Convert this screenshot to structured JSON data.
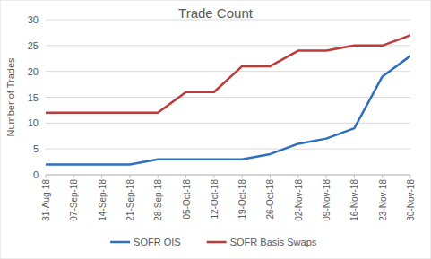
{
  "chart_data": {
    "type": "line",
    "title": "Trade Count",
    "y_label": "Number of Trades",
    "categories": [
      "31-Aug-18",
      "07-Sep-18",
      "14-Sep-18",
      "21-Sep-18",
      "28-Sep-18",
      "05-Oct-18",
      "12-Oct-18",
      "19-Oct-18",
      "26-Oct-18",
      "02-Nov-18",
      "09-Nov-18",
      "16-Nov-18",
      "23-Nov-18",
      "30-Nov-18"
    ],
    "series": [
      {
        "name": "SOFR OIS",
        "color": "#2e6fbd",
        "values": [
          2,
          2,
          2,
          2,
          3,
          3,
          3,
          3,
          4,
          6,
          7,
          9,
          19,
          23
        ]
      },
      {
        "name": "SOFR Basis Swaps",
        "color": "#be3a3a",
        "values": [
          12,
          12,
          12,
          12,
          12,
          16,
          16,
          21,
          21,
          24,
          24,
          25,
          25,
          27
        ]
      }
    ],
    "ylim": [
      0,
      30
    ],
    "yticks": [
      0,
      5,
      10,
      15,
      20,
      25,
      30
    ],
    "grid": true,
    "legend": "bottom"
  }
}
